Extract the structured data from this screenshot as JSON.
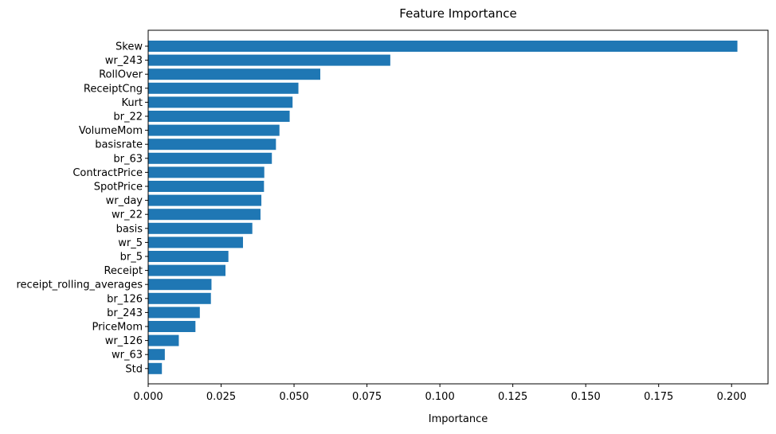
{
  "chart_data": {
    "type": "bar",
    "orientation": "horizontal",
    "title": "Feature Importance",
    "xlabel": "Importance",
    "ylabel": "",
    "xlim": [
      0,
      0.2125
    ],
    "xticks": [
      0.0,
      0.025,
      0.05,
      0.075,
      0.1,
      0.125,
      0.15,
      0.175,
      0.2
    ],
    "xtick_labels": [
      "0.000",
      "0.025",
      "0.050",
      "0.075",
      "0.100",
      "0.125",
      "0.150",
      "0.175",
      "0.200"
    ],
    "bar_color": "#1f77b4",
    "grid": false,
    "categories": [
      "Skew",
      "wr_243",
      "RollOver",
      "ReceiptCng",
      "Kurt",
      "br_22",
      "VolumeMom",
      "basisrate",
      "br_63",
      "ContractPrice",
      "SpotPrice",
      "wr_day",
      "wr_22",
      "basis",
      "wr_5",
      "br_5",
      "Receipt",
      "receipt_rolling_averages",
      "br_126",
      "br_243",
      "PriceMom",
      "wr_126",
      "wr_63",
      "Std"
    ],
    "values": [
      0.202,
      0.083,
      0.059,
      0.0515,
      0.0495,
      0.0485,
      0.045,
      0.0438,
      0.0424,
      0.0398,
      0.0397,
      0.0388,
      0.0385,
      0.0357,
      0.0325,
      0.0275,
      0.0265,
      0.0217,
      0.0215,
      0.0177,
      0.0162,
      0.0105,
      0.0057,
      0.0047
    ]
  }
}
